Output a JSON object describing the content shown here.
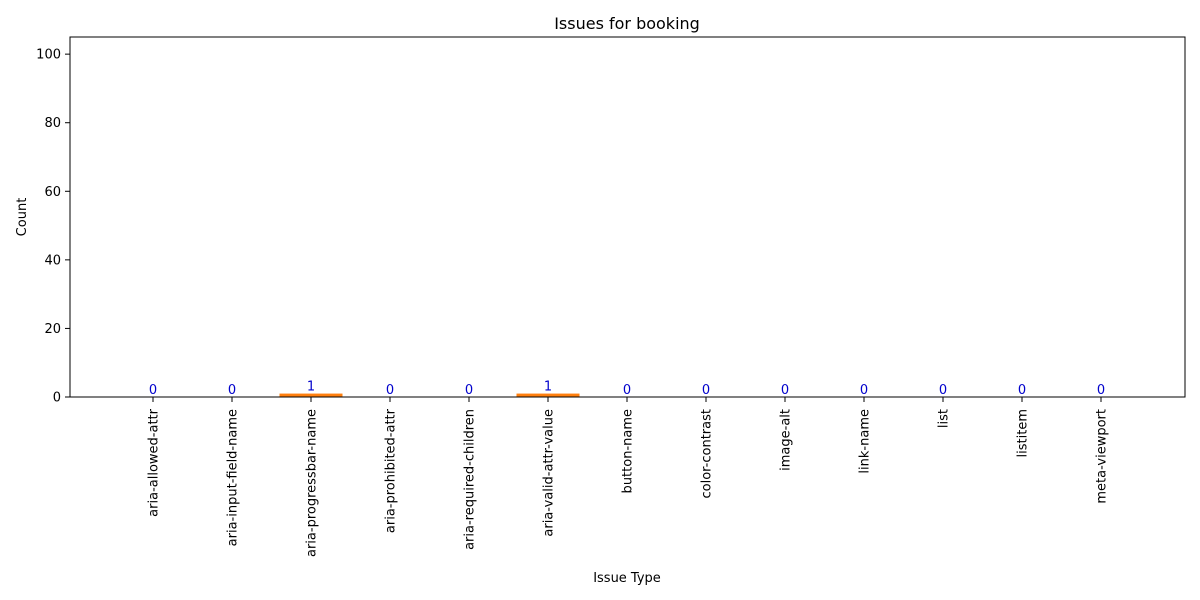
{
  "chart_data": {
    "type": "bar",
    "title": "Issues for booking",
    "xlabel": "Issue Type",
    "ylabel": "Count",
    "categories": [
      "aria-allowed-attr",
      "aria-input-field-name",
      "aria-progressbar-name",
      "aria-prohibited-attr",
      "aria-required-children",
      "aria-valid-attr-value",
      "button-name",
      "color-contrast",
      "image-alt",
      "link-name",
      "list",
      "listitem",
      "meta-viewport"
    ],
    "values": [
      0,
      0,
      1,
      0,
      0,
      1,
      0,
      0,
      0,
      0,
      0,
      0,
      0
    ],
    "ylim": [
      0,
      105
    ],
    "yticks": [
      0,
      20,
      40,
      60,
      80,
      100
    ],
    "grid": false,
    "bar_color": "#ff7f0e",
    "label_color": "#0000cc"
  }
}
